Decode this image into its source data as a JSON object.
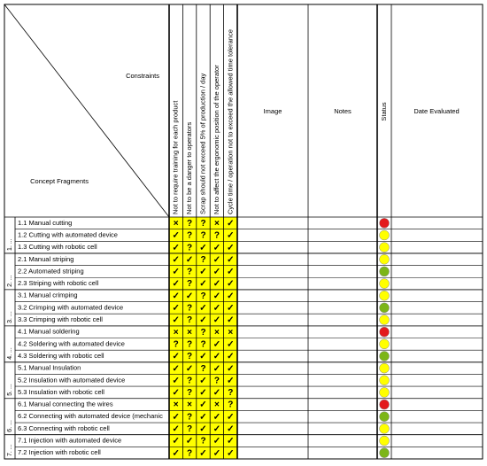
{
  "header": {
    "corner_top": "Constraints",
    "corner_bottom": "Concept Fragments",
    "constraints": [
      "Not to require training for each product",
      "Not to be a danger to operators",
      "Scrap should not exceed 5% of production / day",
      "Not to affect the ergonomic position of the operator",
      "Cycle time / operation not to exceed the allowed time tolerance"
    ],
    "image": "Image",
    "notes": "Notes",
    "status": "Status",
    "date": "Date Evaluated"
  },
  "groups": [
    {
      "label": "1. ...",
      "rows": [
        {
          "name": "1.1 Manual cutting",
          "marks": [
            "×",
            "?",
            "?",
            "×",
            "✓"
          ],
          "status": "#e31a1c"
        },
        {
          "name": "1.2 Cutting with automated device",
          "marks": [
            "✓",
            "?",
            "?",
            "?",
            "✓"
          ],
          "status": "#ffff00"
        },
        {
          "name": "1.3 Cutting with robotic cell",
          "marks": [
            "✓",
            "?",
            "✓",
            "✓",
            "✓"
          ],
          "status": "#ffff00"
        }
      ]
    },
    {
      "label": "2. ...",
      "rows": [
        {
          "name": "2.1 Manual striping",
          "marks": [
            "✓",
            "✓",
            "?",
            "✓",
            "✓"
          ],
          "status": "#ffff00"
        },
        {
          "name": "2.2 Automated striping",
          "marks": [
            "✓",
            "?",
            "✓",
            "✓",
            "✓"
          ],
          "status": "#7cb518"
        },
        {
          "name": "2.3 Striping with robotic cell",
          "marks": [
            "✓",
            "?",
            "✓",
            "✓",
            "✓"
          ],
          "status": "#ffff00"
        }
      ]
    },
    {
      "label": "3. ...",
      "rows": [
        {
          "name": "3.1 Manual crimping",
          "marks": [
            "✓",
            "✓",
            "?",
            "✓",
            "✓"
          ],
          "status": "#ffff00"
        },
        {
          "name": "3.2 Crimping with automated device",
          "marks": [
            "✓",
            "?",
            "✓",
            "✓",
            "✓"
          ],
          "status": "#7cb518"
        },
        {
          "name": "3.3 Crimping with robotic cell",
          "marks": [
            "✓",
            "?",
            "✓",
            "✓",
            "✓"
          ],
          "status": "#ffff00"
        }
      ]
    },
    {
      "label": "4. ...",
      "rows": [
        {
          "name": "4.1 Manual soldering",
          "marks": [
            "×",
            "×",
            "?",
            "×",
            "×"
          ],
          "status": "#e31a1c"
        },
        {
          "name": "4.2 Soldering with automated device",
          "marks": [
            "?",
            "?",
            "?",
            "✓",
            "✓"
          ],
          "status": "#ffff00"
        },
        {
          "name": "4.3 Soldering with robotic cell",
          "marks": [
            "✓",
            "?",
            "✓",
            "✓",
            "✓"
          ],
          "status": "#7cb518"
        }
      ]
    },
    {
      "label": "5. ...",
      "rows": [
        {
          "name": "5.1 Manual Insulation",
          "marks": [
            "✓",
            "✓",
            "?",
            "✓",
            "✓"
          ],
          "status": "#ffff00"
        },
        {
          "name": "5.2 Insulation with automated device",
          "marks": [
            "✓",
            "?",
            "✓",
            "?",
            "✓"
          ],
          "status": "#ffff00"
        },
        {
          "name": "5.3 Insulation with robotic cell",
          "marks": [
            "✓",
            "?",
            "✓",
            "✓",
            "?"
          ],
          "status": "#ffff00"
        }
      ]
    },
    {
      "label": "6. ...",
      "rows": [
        {
          "name": "6.1 Manual connecting the wires",
          "marks": [
            "×",
            "×",
            "✓",
            "×",
            "?"
          ],
          "status": "#e31a1c"
        },
        {
          "name": "6.2 Connecting with automated device (mechanic",
          "marks": [
            "✓",
            "?",
            "✓",
            "✓",
            "✓"
          ],
          "status": "#7cb518"
        },
        {
          "name": "6.3 Connecting with robotic cell",
          "marks": [
            "✓",
            "?",
            "✓",
            "✓",
            "✓"
          ],
          "status": "#ffff00"
        }
      ]
    },
    {
      "label": "7. ...",
      "rows": [
        {
          "name": "7.1 Injection with automated device",
          "marks": [
            "✓",
            "✓",
            "?",
            "✓",
            "✓"
          ],
          "status": "#ffff00"
        },
        {
          "name": "7.2 Injection with robotic cell",
          "marks": [
            "✓",
            "?",
            "✓",
            "✓",
            "✓"
          ],
          "status": "#7cb518"
        }
      ]
    }
  ]
}
